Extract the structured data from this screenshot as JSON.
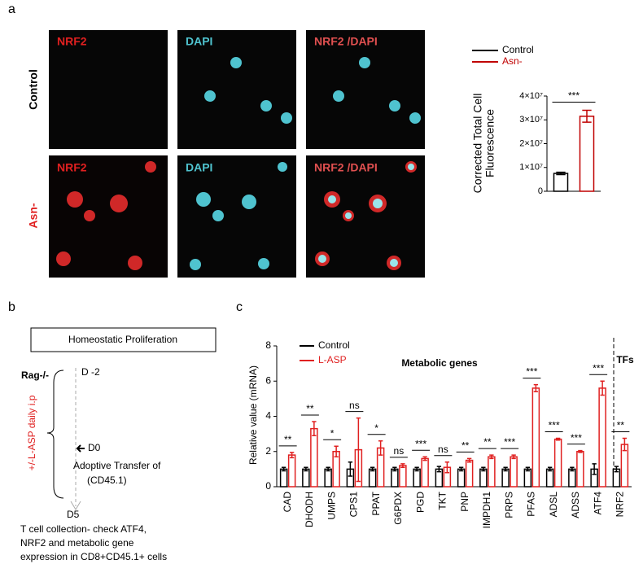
{
  "panel_labels": [
    "a",
    "b",
    "c"
  ],
  "panel_a_images": {
    "row_labels": [
      "Control",
      "Asn-"
    ],
    "channel_labels": [
      [
        "NRF2",
        "DAPI",
        "NRF2 /DAPI"
      ],
      [
        "NRF2",
        "DAPI",
        "NRF2 /DAPI"
      ]
    ]
  },
  "panel_b_diagram": {
    "title": "Homeostatic Proliferation",
    "mouse": "Rag-/-",
    "day_start": "D -2",
    "treatment": "+/-L-ASP daily i.p",
    "day_transfer": "D0",
    "transfer_lines": [
      "Adoptive Transfer of",
      "(CD45.1)"
    ],
    "day_end": "D5",
    "collection_lines": [
      "T cell collection- check ATF4,",
      "NRF2 and metabolic gene",
      "expression in CD8+CD45.1+  cells"
    ]
  },
  "chart_data": [
    {
      "type": "bar",
      "ylabel": [
        "Corrected Total Cell",
        "Fluorescence"
      ],
      "series": [
        {
          "name": "Control",
          "color": "#000000",
          "values": [
            7500000
          ],
          "errors": [
            500000
          ]
        },
        {
          "name": "Asn-",
          "color": "#c00000",
          "values": [
            31500000
          ],
          "errors": [
            2500000
          ]
        }
      ],
      "significance": [
        "***"
      ],
      "ylim": [
        0,
        40000000
      ],
      "yticks": [
        0,
        {
          "value": 10000000,
          "label": "1×10⁷"
        },
        {
          "value": 20000000,
          "label": "2×10⁷"
        },
        {
          "value": 30000000,
          "label": "3×10⁷"
        },
        {
          "value": 40000000,
          "label": "4×10⁷"
        }
      ],
      "legend": "top-left"
    },
    {
      "type": "bar",
      "ylabel": "Relative value (mRNA)",
      "categories": [
        "CAD",
        "DHODH",
        "UMPS",
        "CPS1",
        "PPAT",
        "G6PDX",
        "PGD",
        "TKT",
        "PNP",
        "IMPDH1",
        "PRPS",
        "PFAS",
        "ADSL",
        "ADSS",
        "ATF4",
        "NRF2"
      ],
      "series": [
        {
          "name": "Control",
          "color": "#000000",
          "values": [
            1,
            1,
            1,
            1,
            1,
            1,
            1,
            1,
            1,
            1,
            1,
            1,
            1,
            1,
            1,
            1
          ],
          "errors": [
            0.1,
            0.1,
            0.1,
            0.4,
            0.1,
            0.1,
            0.1,
            0.15,
            0.1,
            0.1,
            0.1,
            0.1,
            0.1,
            0.1,
            0.3,
            0.15
          ]
        },
        {
          "name": "L-ASP",
          "color": "#e02020",
          "values": [
            1.8,
            3.3,
            2.0,
            2.1,
            2.2,
            1.2,
            1.6,
            1.1,
            1.5,
            1.7,
            1.7,
            5.6,
            2.7,
            2.0,
            5.6,
            2.4
          ],
          "errors": [
            0.15,
            0.4,
            0.3,
            1.8,
            0.4,
            0.1,
            0.1,
            0.3,
            0.1,
            0.1,
            0.1,
            0.2,
            0.05,
            0.05,
            0.4,
            0.35
          ]
        }
      ],
      "significance": [
        "**",
        "**",
        "*",
        "ns",
        "*",
        "ns",
        "***",
        "ns",
        "**",
        "**",
        "***",
        "***",
        "***",
        "***",
        "***",
        "**"
      ],
      "annotations": [
        "Metabolic genes",
        "TFs"
      ],
      "ylim": [
        0,
        8
      ],
      "yticks": [
        0,
        2,
        4,
        6,
        8
      ],
      "legend": "top-left"
    }
  ]
}
